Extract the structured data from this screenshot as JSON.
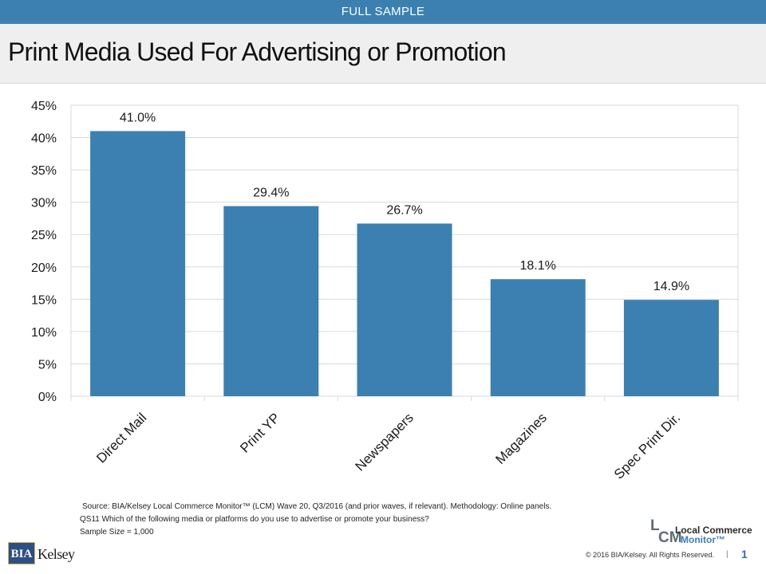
{
  "header": {
    "banner": "FULL SAMPLE",
    "title": "Print Media Used For Advertising or Promotion"
  },
  "colors": {
    "accent": "#3b80b0",
    "bar": "#3b80b0",
    "grid": "#d9d9d9",
    "title_band": "#efefef"
  },
  "chart_data": {
    "type": "bar",
    "categories": [
      "Direct Mail",
      "Print YP",
      "Newspapers",
      "Magazines",
      "Spec Print Dir."
    ],
    "values": [
      41.0,
      29.4,
      26.7,
      18.1,
      14.9
    ],
    "data_labels": [
      "41.0%",
      "29.4%",
      "26.7%",
      "18.1%",
      "14.9%"
    ],
    "ylim": [
      0,
      45
    ],
    "yticks": [
      0,
      5,
      10,
      15,
      20,
      25,
      30,
      35,
      40,
      45
    ],
    "ytick_labels": [
      "0%",
      "5%",
      "10%",
      "15%",
      "20%",
      "25%",
      "30%",
      "35%",
      "40%",
      "45%"
    ],
    "grid": true,
    "legend": "none",
    "xlabel_rotation": "-45"
  },
  "notes": {
    "source": "Source: BIA/Kelsey Local Commerce Monitor™ (LCM) Wave 20, Q3/2016 (and prior waves, if relevant). Methodology: Online panels.",
    "question": "QS11 Which of the following media or platforms do you use to advertise or promote your business?",
    "sample": "Sample Size = 1,000"
  },
  "footer": {
    "logo_mark": "BIA",
    "logo_word": "Kelsey",
    "lcm_l": "L",
    "lcm_cm": "CM",
    "lcm_line1": "Local Commerce",
    "lcm_line2": "Monitor™",
    "copyright": "© 2016 BIA/Kelsey. All Rights Reserved.",
    "separator": "|",
    "page_number": "1"
  }
}
